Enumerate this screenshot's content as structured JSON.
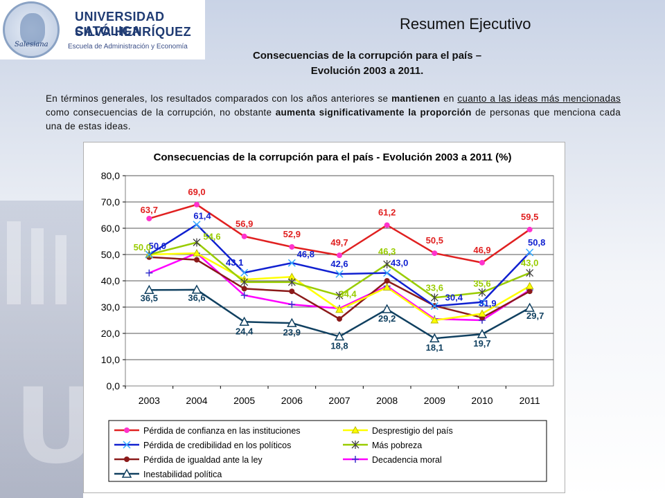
{
  "header": {
    "university_line1": "UNIVERSIDAD CATÓLICA",
    "university_line2": "SILVA HENRÍQUEZ",
    "seal_word": "Salesiana",
    "school": "Escuela de Administración y Economía",
    "slide_label": "Resumen Ejecutivo",
    "subtitle_line1": "Consecuencias de la corrupción para el país –",
    "subtitle_line2": "Evolución 2003 a 2011."
  },
  "body": {
    "p1": "En términos generales, los resultados comparados con los años anteriores se",
    "p2": "mantienen",
    "p3": " en ",
    "p4": "cuanto a las ideas más mencionadas ",
    "p5": "como consecuencias de la corrupción, no obstante",
    "p6": "aumenta significativamente la proporción",
    "p7": " de personas que menciona cada una de estas ideas."
  },
  "background": {
    "letters": "UCS"
  },
  "chart_data": {
    "type": "line",
    "title": "Consecuencias de la corrupción para el país - Evolución 2003 a 2011 (%)",
    "categories": [
      "2003",
      "2004",
      "2005",
      "2006",
      "2007",
      "2008",
      "2009",
      "2010",
      "2011"
    ],
    "ylim": [
      0,
      80
    ],
    "yticks": [
      "0,0",
      "10,0",
      "20,0",
      "30,0",
      "40,0",
      "50,0",
      "60,0",
      "70,0",
      "80,0"
    ],
    "grid": true,
    "legend_position": "bottom",
    "series": [
      {
        "name": "Pérdida de confianza en las instituciones",
        "color": "#e02020",
        "marker": "circle",
        "marker_color": "#ff33cc",
        "values": [
          63.7,
          69.0,
          56.9,
          52.9,
          49.7,
          61.2,
          50.5,
          46.9,
          59.5
        ],
        "labels": [
          "63,7",
          "69,0",
          "56,9",
          "52,9",
          "49,7",
          "61,2",
          "50,5",
          "46,9",
          "59,5"
        ]
      },
      {
        "name": "Desprestigio del país",
        "color": "#ffff00",
        "marker": "triangle",
        "marker_color": "#ffff00",
        "values": [
          50.0,
          50.5,
          40.5,
          41.5,
          29.0,
          37.5,
          25.0,
          27.5,
          38.0
        ],
        "labels": []
      },
      {
        "name": "Pérdida de credibilidad en los políticos",
        "color": "#1020d0",
        "marker": "x",
        "marker_color": "#33aaff",
        "values": [
          50.0,
          61.4,
          43.1,
          46.8,
          42.6,
          43.0,
          30.4,
          31.9,
          50.8
        ],
        "labels": [
          "50,0",
          "61,4",
          "43,1",
          "46,8",
          "42,6",
          "43,0",
          "30,4",
          "31,9",
          "50,8"
        ]
      },
      {
        "name": "Más pobreza",
        "color": "#99cc00",
        "marker": "star",
        "marker_color": "#404040",
        "values": [
          50.0,
          54.6,
          39.5,
          39.5,
          34.4,
          46.3,
          33.6,
          35.6,
          43.0
        ],
        "labels": [
          "50,0",
          "54,6",
          "",
          "",
          "34,4",
          "46,3",
          "33,6",
          "35,6",
          "43,0"
        ]
      },
      {
        "name": "Pérdida de igualdad ante la ley",
        "color": "#8b1a1a",
        "marker": "circle",
        "marker_color": "#8b1a1a",
        "values": [
          49.0,
          48.0,
          37.0,
          36.0,
          25.5,
          40.0,
          30.5,
          26.0,
          36.0
        ],
        "labels": []
      },
      {
        "name": "Decadencia moral",
        "color": "#ff00ff",
        "marker": "plus",
        "marker_color": "#3333cc",
        "values": [
          43.0,
          50.5,
          34.5,
          31.0,
          29.5,
          38.0,
          25.5,
          25.0,
          36.5
        ],
        "labels": []
      },
      {
        "name": "Inestabilidad política",
        "color": "#104060",
        "marker": "triangle-open",
        "marker_color": "#104060",
        "values": [
          36.5,
          36.6,
          24.4,
          23.9,
          18.8,
          29.2,
          18.1,
          19.7,
          29.7
        ],
        "labels": [
          "36,5",
          "36,6",
          "24,4",
          "23,9",
          "18,8",
          "29,2",
          "18,1",
          "19,7",
          "29,7"
        ]
      }
    ]
  }
}
